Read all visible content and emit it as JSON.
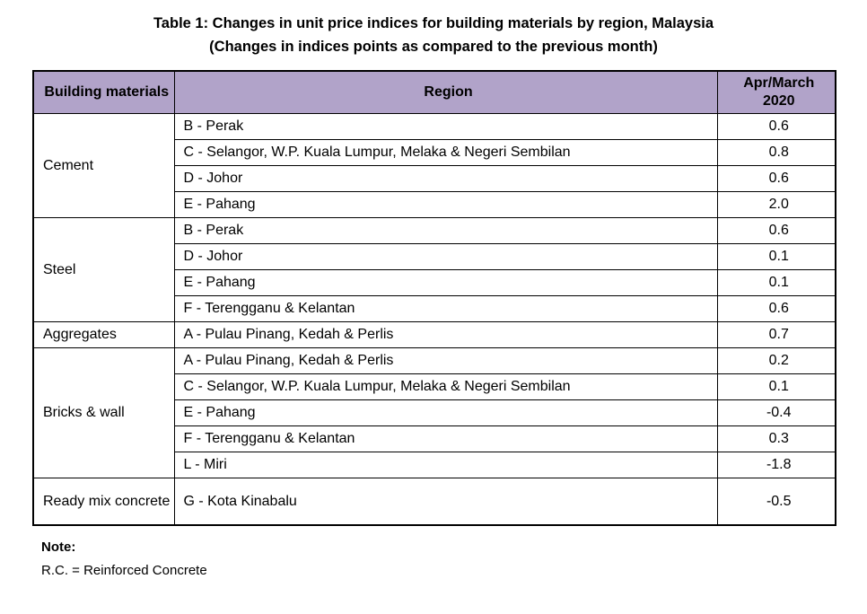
{
  "title": "Table 1: Changes in unit price indices for building materials by region, Malaysia",
  "subtitle": "(Changes in indices points as compared to the previous month)",
  "table": {
    "header_bg": "#b1a3c9",
    "columns": [
      "Building materials",
      "Region",
      "Apr/March 2020"
    ],
    "groups": [
      {
        "material": "Cement",
        "rows": [
          {
            "region": "B - Perak",
            "value": "0.6"
          },
          {
            "region": "C - Selangor, W.P. Kuala Lumpur, Melaka & Negeri Sembilan",
            "value": "0.8"
          },
          {
            "region": "D - Johor",
            "value": "0.6"
          },
          {
            "region": "E - Pahang",
            "value": "2.0"
          }
        ]
      },
      {
        "material": "Steel",
        "rows": [
          {
            "region": "B - Perak",
            "value": "0.6"
          },
          {
            "region": "D - Johor",
            "value": "0.1"
          },
          {
            "region": "E - Pahang",
            "value": "0.1"
          },
          {
            "region": "F - Terengganu & Kelantan",
            "value": "0.6"
          }
        ]
      },
      {
        "material": "Aggregates",
        "rows": [
          {
            "region": "A - Pulau Pinang, Kedah & Perlis",
            "value": "0.7"
          }
        ]
      },
      {
        "material": "Bricks & wall",
        "rows": [
          {
            "region": "A - Pulau Pinang, Kedah & Perlis",
            "value": "0.2"
          },
          {
            "region": "C - Selangor, W.P. Kuala Lumpur, Melaka & Negeri Sembilan",
            "value": "0.1"
          },
          {
            "region": "E - Pahang",
            "value": "-0.4"
          },
          {
            "region": "F - Terengganu & Kelantan",
            "value": "0.3"
          },
          {
            "region": "L - Miri",
            "value": "-1.8"
          }
        ]
      },
      {
        "material": "Ready mix concrete",
        "rows": [
          {
            "region": "G - Kota Kinabalu",
            "value": "-0.5"
          }
        ]
      }
    ]
  },
  "note": {
    "label": "Note:",
    "text": "R.C. = Reinforced Concrete"
  }
}
